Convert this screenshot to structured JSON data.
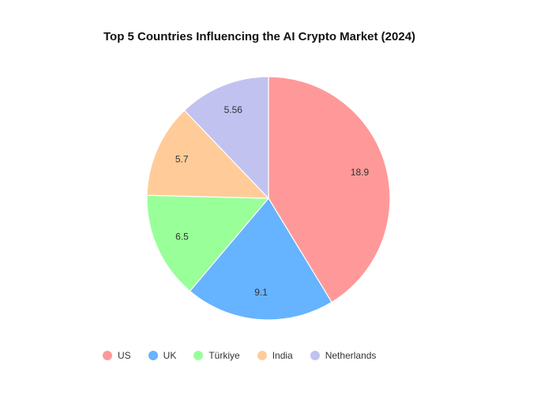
{
  "chart_data": {
    "type": "pie",
    "title": "Top 5 Countries Influencing the AI Crypto Market (2024)",
    "categories": [
      "US",
      "UK",
      "Türkiye",
      "India",
      "Netherlands"
    ],
    "values": [
      18.9,
      9.1,
      6.5,
      5.7,
      5.56
    ],
    "labels": [
      "18.9",
      "9.1",
      "6.5",
      "5.7",
      "5.56"
    ],
    "colors": [
      "#ff9999",
      "#66b3ff",
      "#99ff99",
      "#ffcc99",
      "#c2c2f0"
    ],
    "legend_position": "bottom-left",
    "start_angle": "top",
    "direction": "clockwise"
  }
}
